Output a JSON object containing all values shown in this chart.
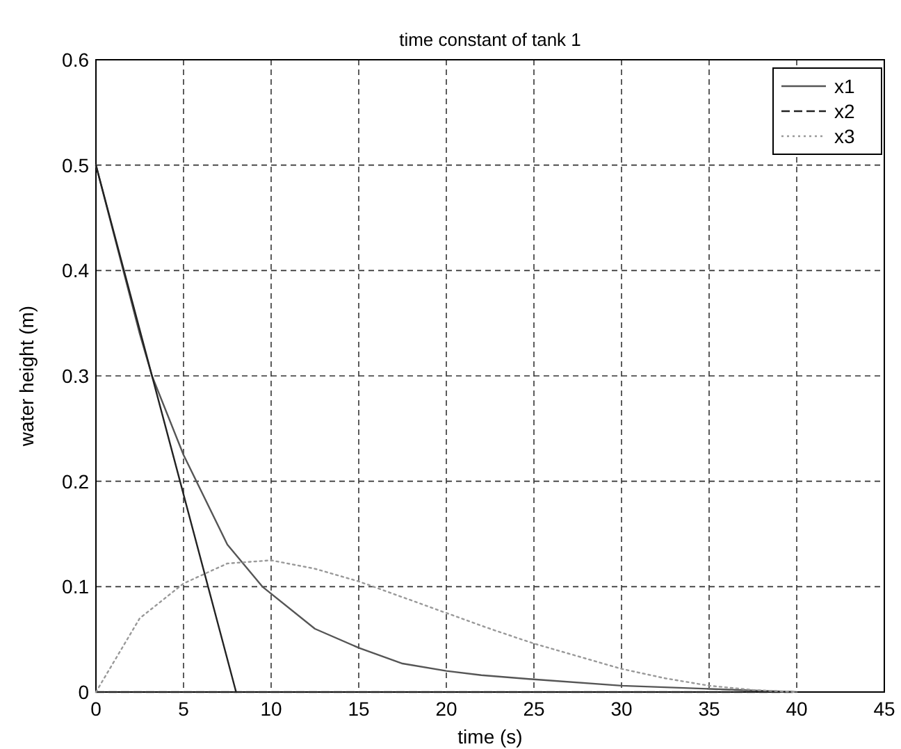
{
  "chart_data": {
    "type": "line",
    "title": "time constant of tank 1",
    "xlabel": "time (s)",
    "ylabel": "water height (m)",
    "xlim": [
      0,
      45
    ],
    "ylim": [
      0,
      0.6
    ],
    "xticks": [
      0,
      5,
      10,
      15,
      20,
      25,
      30,
      35,
      40,
      45
    ],
    "yticks": [
      0,
      0.1,
      0.2,
      0.3,
      0.4,
      0.5,
      0.6
    ],
    "grid": true,
    "legend": "top right",
    "marker": "none",
    "series": [
      {
        "name": "x1",
        "color": "#555555",
        "line_style": "solid",
        "x": [
          0,
          2.5,
          3.2,
          5,
          7.5,
          9.5,
          12.5,
          15,
          17.5,
          20,
          22,
          25,
          30,
          35,
          40
        ],
        "values": [
          0.5,
          0.34,
          0.3,
          0.225,
          0.14,
          0.1,
          0.06,
          0.042,
          0.027,
          0.02,
          0.016,
          0.012,
          0.006,
          0.003,
          0
        ]
      },
      {
        "name": "x2",
        "color": "#222222",
        "line_style": "dashed",
        "x": [
          0,
          10,
          20,
          30,
          40
        ],
        "values": [
          0,
          0,
          0,
          0,
          0
        ]
      },
      {
        "name": "x3",
        "color": "#999999",
        "line_style": "dotted",
        "x": [
          0,
          2.5,
          5,
          7.5,
          10,
          12.5,
          15,
          17.5,
          20,
          22.5,
          25,
          27.5,
          30,
          32.5,
          35,
          37.5,
          40
        ],
        "values": [
          0,
          0.07,
          0.103,
          0.122,
          0.125,
          0.117,
          0.105,
          0.09,
          0.075,
          0.06,
          0.046,
          0.034,
          0.022,
          0.013,
          0.006,
          0.002,
          0
        ]
      },
      {
        "color": "#222222",
        "line_style": "solid",
        "x": [
          0,
          8
        ],
        "values": [
          0.5,
          0
        ]
      }
    ]
  }
}
